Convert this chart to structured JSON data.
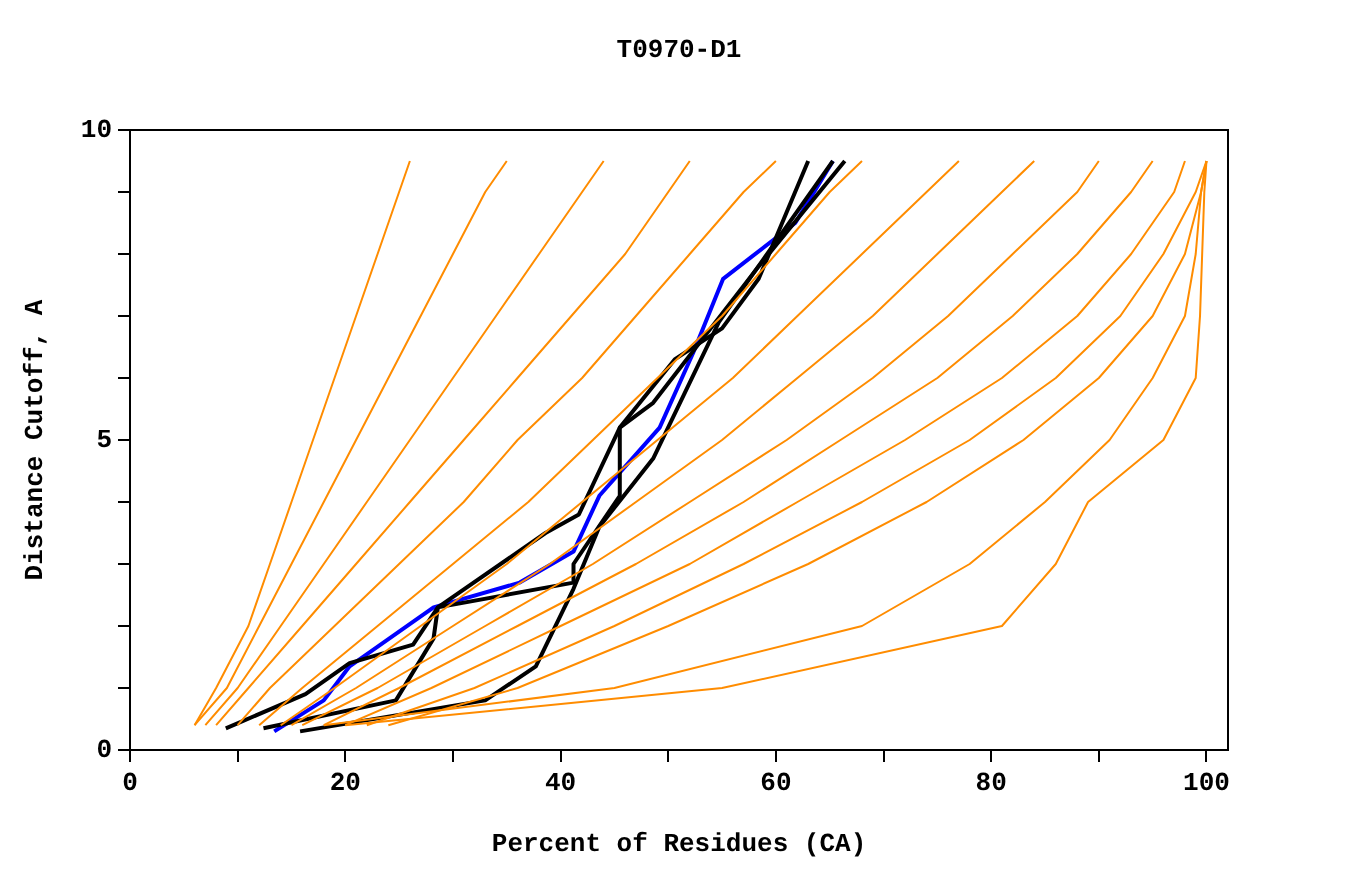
{
  "chart_data": {
    "type": "line",
    "title": "T0970-D1",
    "xlabel": "Percent of Residues (CA)",
    "ylabel": "Distance Cutoff, A",
    "xlim": [
      0,
      102
    ],
    "ylim": [
      0,
      10
    ],
    "xticks": [
      0,
      {
        "value": 10,
        "label": null
      },
      20,
      {
        "value": 30,
        "label": null
      },
      40,
      {
        "value": 50,
        "label": null
      },
      60,
      {
        "value": 70,
        "label": null
      },
      80,
      {
        "value": 90,
        "label": null
      },
      100
    ],
    "yticks": [
      0,
      {
        "value": 1,
        "label": null
      },
      {
        "value": 2,
        "label": null
      },
      {
        "value": 3,
        "label": null
      },
      {
        "value": 4,
        "label": null
      },
      5,
      {
        "value": 6,
        "label": null
      },
      {
        "value": 7,
        "label": null
      },
      {
        "value": 8,
        "label": null
      },
      {
        "value": 9,
        "label": null
      },
      10
    ],
    "marker": "none",
    "line_style": "solid",
    "series": [
      {
        "color": "#ff8c00",
        "x": [
          6,
          8,
          11,
          13,
          15,
          17,
          19,
          21,
          23,
          25,
          26
        ],
        "values": [
          0.4,
          1,
          2,
          3,
          4,
          5,
          6,
          7,
          8,
          9,
          9.5
        ]
      },
      {
        "color": "#ff8c00",
        "x": [
          6,
          9,
          12,
          15,
          18,
          21,
          24,
          27,
          30,
          33,
          35
        ],
        "values": [
          0.4,
          1,
          2,
          3,
          4,
          5,
          6,
          7,
          8,
          9,
          9.5
        ]
      },
      {
        "color": "#ff8c00",
        "x": [
          7,
          10,
          14,
          18,
          22,
          26,
          30,
          34,
          38,
          42,
          44
        ],
        "values": [
          0.4,
          1,
          2,
          3,
          4,
          5,
          6,
          7,
          8,
          9,
          9.5
        ]
      },
      {
        "color": "#ff8c00",
        "x": [
          8,
          11,
          16,
          21,
          26,
          31,
          36,
          41,
          46,
          50,
          52
        ],
        "values": [
          0.4,
          1,
          2,
          3,
          4,
          5,
          6,
          7,
          8,
          9,
          9.5
        ]
      },
      {
        "color": "#ff8c00",
        "x": [
          10,
          13,
          19,
          25,
          31,
          36,
          42,
          47,
          52,
          57,
          60
        ],
        "values": [
          0.4,
          1,
          2,
          3,
          4,
          5,
          6,
          7,
          8,
          9,
          9.5
        ]
      },
      {
        "color": "#ff8c00",
        "x": [
          12,
          16,
          23,
          30,
          37,
          43,
          49,
          55,
          60,
          65,
          68
        ],
        "values": [
          0.4,
          1,
          2,
          3,
          4,
          5,
          6,
          7,
          8,
          9,
          9.5
        ]
      },
      {
        "color": "#ff8c00",
        "x": [
          14,
          19,
          27,
          35,
          42,
          49,
          56,
          62,
          68,
          74,
          77
        ],
        "values": [
          0.4,
          1,
          2,
          3,
          4,
          5,
          6,
          7,
          8,
          9,
          9.5
        ]
      },
      {
        "color": "#ff8c00",
        "x": [
          15,
          21,
          30,
          39,
          47,
          55,
          62,
          69,
          75,
          81,
          84
        ],
        "values": [
          0.4,
          1,
          2,
          3,
          4,
          5,
          6,
          7,
          8,
          9,
          9.5
        ]
      },
      {
        "color": "#ff8c00",
        "x": [
          16,
          23,
          33,
          43,
          52,
          61,
          69,
          76,
          82,
          88,
          90
        ],
        "values": [
          0.4,
          1,
          2,
          3,
          4,
          5,
          6,
          7,
          8,
          9,
          9.5
        ]
      },
      {
        "color": "#ff8c00",
        "x": [
          18,
          25,
          36,
          47,
          57,
          66,
          75,
          82,
          88,
          93,
          95
        ],
        "values": [
          0.4,
          1,
          2,
          3,
          4,
          5,
          6,
          7,
          8,
          9,
          9.5
        ]
      },
      {
        "color": "#ff8c00",
        "x": [
          20,
          28,
          40,
          52,
          62,
          72,
          81,
          88,
          93,
          97,
          98
        ],
        "values": [
          0.4,
          1,
          2,
          3,
          4,
          5,
          6,
          7,
          8,
          9,
          9.5
        ]
      },
      {
        "color": "#ff8c00",
        "x": [
          22,
          32,
          45,
          57,
          68,
          78,
          86,
          92,
          96,
          99,
          100
        ],
        "values": [
          0.4,
          1,
          2,
          3,
          4,
          5,
          6,
          7,
          8,
          9,
          9.5
        ]
      },
      {
        "color": "#ff8c00",
        "x": [
          24,
          36,
          50,
          63,
          74,
          83,
          90,
          95,
          98,
          99.5,
          100
        ],
        "values": [
          0.4,
          1,
          2,
          3,
          4,
          5,
          6,
          7,
          8,
          9,
          9.5
        ]
      },
      {
        "color": "#ff8c00",
        "x": [
          18,
          45,
          68,
          78,
          85,
          91,
          95,
          98,
          99,
          99.5,
          100
        ],
        "values": [
          0.4,
          1,
          2,
          3,
          4,
          5,
          6,
          7,
          8,
          9,
          9.5
        ]
      },
      {
        "color": "#ff8c00",
        "x": [
          20,
          55,
          81,
          86,
          89,
          96,
          99,
          99.4,
          99.6,
          99.8,
          100
        ],
        "values": [
          0.4,
          1,
          2,
          3,
          4,
          5,
          6,
          7,
          8,
          9,
          9.5
        ]
      },
      {
        "color": "#000000",
        "x": [
          8.9,
          16.3,
          20.4,
          26.3,
          28.6,
          38.6,
          41.7,
          45.5,
          50.6,
          55,
          58.4,
          63
        ],
        "values": [
          0.35,
          0.9,
          1.4,
          1.7,
          2.3,
          3.5,
          3.8,
          5.2,
          6.3,
          6.8,
          7.6,
          9.5
        ]
      },
      {
        "color": "#000000",
        "x": [
          12.4,
          24.7,
          28.2,
          28.6,
          41.2,
          41.2,
          45.5,
          45.5,
          48.6,
          58.4,
          66.4
        ],
        "values": [
          0.35,
          0.8,
          1.8,
          2.3,
          2.7,
          3,
          4.1,
          5.2,
          5.6,
          7.8,
          9.5
        ]
      },
      {
        "color": "#000000",
        "x": [
          15.8,
          33,
          37.7,
          41.2,
          43.6,
          48.6,
          54.7,
          65.3
        ],
        "values": [
          0.3,
          0.8,
          1.35,
          2.6,
          3.6,
          4.7,
          6.9,
          9.5
        ]
      },
      {
        "color": "#0000ff",
        "x": [
          13.4,
          18,
          20.4,
          28.2,
          36.2,
          41.2,
          43.6,
          49.2,
          52.3,
          55.1,
          61.8,
          65.3
        ],
        "values": [
          0.3,
          0.8,
          1.35,
          2.3,
          2.7,
          3.2,
          4.1,
          5.2,
          6.4,
          7.6,
          8.5,
          9.5
        ]
      }
    ]
  }
}
